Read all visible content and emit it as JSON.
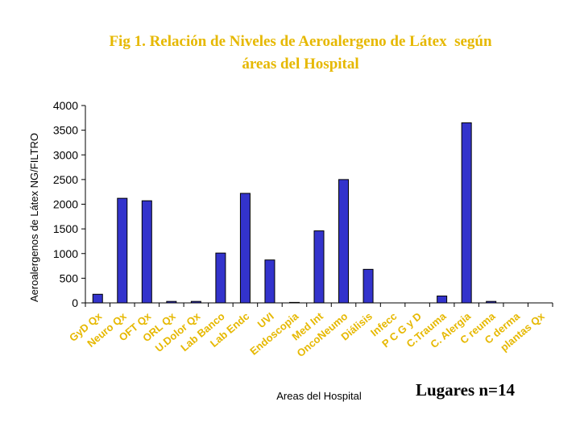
{
  "chart_data": {
    "type": "bar",
    "title_line1": "Fig 1. Relación de Niveles de Aeroalergeno de Látex  según",
    "title_line2": "áreas del Hospital",
    "xlabel": "Areas del Hospital",
    "ylabel": "Aeroalergenos de Látex NG/FILTRO",
    "ylim": [
      0,
      4000
    ],
    "yticks": [
      "0",
      "500",
      "1000",
      "1500",
      "2000",
      "2500",
      "3000",
      "3500",
      "4000"
    ],
    "categories": [
      "GyD Qx",
      "Neuro Qx",
      "OFT Qx",
      "ORL Qx",
      "U.Dolor Qx",
      "Lab Banco",
      "Lab Endc",
      "UVI",
      "Endoscopia",
      "Med Int",
      "OncoNeumo",
      "Diálisis",
      "Infecc",
      "P C G y D",
      "C.Trauma",
      "C. Alergia",
      "C reuma",
      "C derma",
      "plantas Qx"
    ],
    "values": [
      175,
      2120,
      2070,
      30,
      30,
      1010,
      2220,
      870,
      10,
      1460,
      2500,
      680,
      0,
      0,
      140,
      3650,
      30,
      0,
      0
    ],
    "grid": false,
    "legend": "none",
    "bar_color": "#3333cc",
    "label_color": "#e6b800",
    "annotation": "Lugares n=14"
  }
}
